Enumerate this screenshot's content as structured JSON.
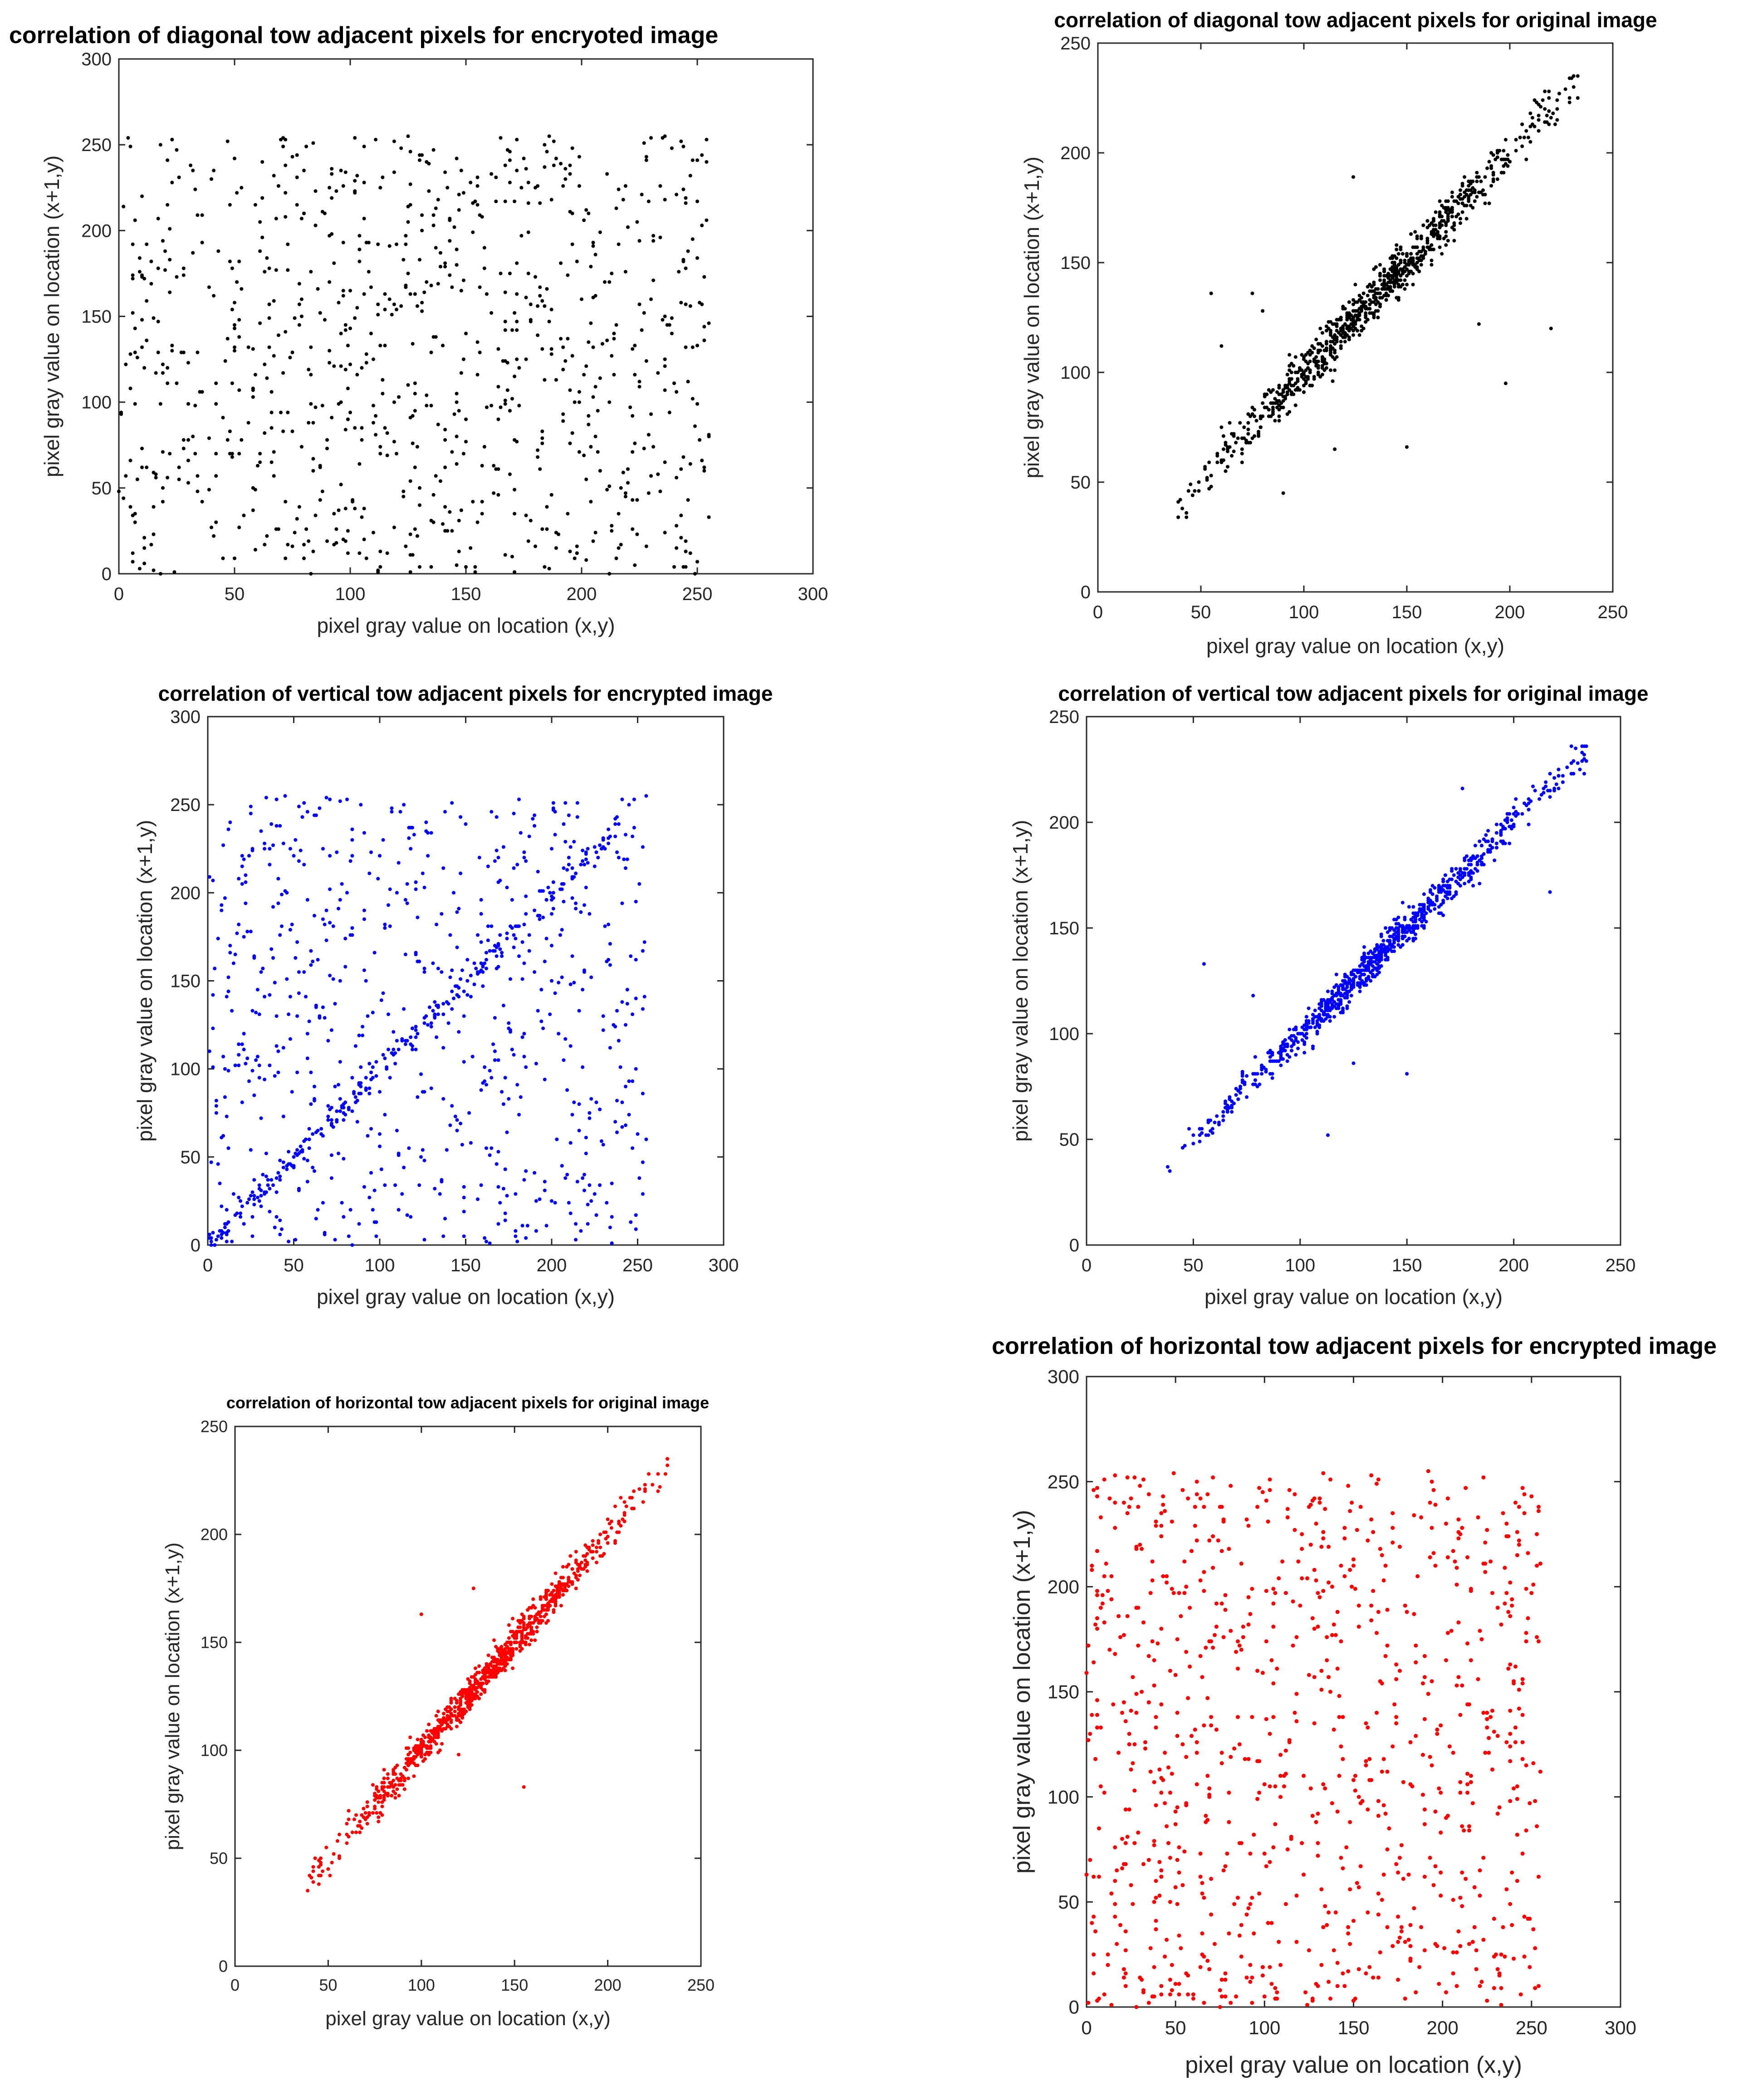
{
  "chart_data": [
    {
      "type": "scatter",
      "title": "correlation of diagonal tow adjacent pixels for encryoted image",
      "xlabel": "pixel gray value on location (x,y)",
      "ylabel": "pixel gray value on location (x+1,y)",
      "xlim": [
        0,
        300
      ],
      "ylim": [
        0,
        300
      ],
      "xticks": [
        0,
        50,
        100,
        150,
        200,
        250,
        300
      ],
      "yticks": [
        0,
        50,
        100,
        150,
        200,
        250,
        300
      ],
      "grid": false,
      "legend": "none",
      "color": "#000000",
      "pattern": "uniform",
      "n_points": 900,
      "x_range": [
        0,
        255
      ],
      "y_range": [
        0,
        255
      ],
      "seed": 11
    },
    {
      "type": "scatter",
      "title": "correlation of diagonal tow adjacent pixels for original image",
      "xlabel": "pixel gray value on location (x,y)",
      "ylabel": "pixel gray value on location (x+1,y)",
      "xlim": [
        0,
        250
      ],
      "ylim": [
        0,
        250
      ],
      "xticks": [
        0,
        50,
        100,
        150,
        200,
        250
      ],
      "yticks": [
        0,
        50,
        100,
        150,
        200,
        250
      ],
      "grid": false,
      "legend": "none",
      "color": "#000000",
      "pattern": "correlated",
      "n_points": 900,
      "x_range": [
        38,
        233
      ],
      "noise": 5,
      "outliers": [
        [
          55,
          136
        ],
        [
          75,
          136
        ],
        [
          60,
          112
        ],
        [
          90,
          45
        ],
        [
          80,
          128
        ],
        [
          124,
          189
        ],
        [
          150,
          66
        ],
        [
          115,
          65
        ],
        [
          220,
          120
        ],
        [
          198,
          95
        ],
        [
          185,
          122
        ]
      ],
      "seed": 23
    },
    {
      "type": "scatter",
      "title": "correlation of vertical tow adjacent pixels for encrypted image",
      "xlabel": "pixel gray value on location (x,y)",
      "ylabel": "pixel gray value on location (x+1,y)",
      "xlim": [
        0,
        300
      ],
      "ylim": [
        0,
        300
      ],
      "xticks": [
        0,
        50,
        100,
        150,
        200,
        250,
        300
      ],
      "yticks": [
        0,
        50,
        100,
        150,
        200,
        250,
        300
      ],
      "grid": false,
      "legend": "none",
      "color": "#0000ff",
      "pattern": "uniform_with_diagonal",
      "n_points": 700,
      "n_diagonal": 260,
      "x_range": [
        0,
        255
      ],
      "y_range": [
        0,
        255
      ],
      "noise": 4,
      "seed": 37
    },
    {
      "type": "scatter",
      "title": "correlation of vertical tow adjacent pixels for original image",
      "xlabel": "pixel gray value on location (x,y)",
      "ylabel": "pixel gray value on location (x+1,y)",
      "xlim": [
        0,
        250
      ],
      "ylim": [
        0,
        250
      ],
      "xticks": [
        0,
        50,
        100,
        150,
        200,
        250
      ],
      "yticks": [
        0,
        50,
        100,
        150,
        200,
        250
      ],
      "grid": false,
      "legend": "none",
      "color": "#0000ff",
      "pattern": "correlated",
      "n_points": 900,
      "x_range": [
        37,
        234
      ],
      "noise": 4,
      "outliers": [
        [
          55,
          133
        ],
        [
          78,
          118
        ],
        [
          150,
          81
        ],
        [
          125,
          86
        ],
        [
          217,
          167
        ],
        [
          176,
          216
        ],
        [
          113,
          52
        ]
      ],
      "seed": 41
    },
    {
      "type": "scatter",
      "title": "correlation of horizontal tow adjacent pixels for original image",
      "xlabel": "pixel gray value on location (x,y)",
      "ylabel": "pixel gray value on location (x+1,y)",
      "xlim": [
        0,
        250
      ],
      "ylim": [
        0,
        250
      ],
      "xticks": [
        0,
        50,
        100,
        150,
        200,
        250
      ],
      "yticks": [
        0,
        50,
        100,
        150,
        200,
        250
      ],
      "grid": false,
      "legend": "none",
      "color": "#ff0000",
      "pattern": "correlated",
      "n_points": 900,
      "x_range": [
        38,
        233
      ],
      "noise": 4,
      "outliers": [
        [
          100,
          163
        ],
        [
          128,
          175
        ],
        [
          155,
          83
        ],
        [
          120,
          98
        ],
        [
          180,
          190
        ]
      ],
      "seed": 53
    },
    {
      "type": "scatter",
      "title": "correlation of horizontal tow adjacent pixels for encrypted image",
      "xlabel": "pixel gray value on location (x,y)",
      "ylabel": "pixel gray value on location (x+1,y)",
      "xlim": [
        0,
        300
      ],
      "ylim": [
        0,
        300
      ],
      "xticks": [
        0,
        50,
        100,
        150,
        200,
        250,
        300
      ],
      "yticks": [
        0,
        50,
        100,
        150,
        200,
        250,
        300
      ],
      "grid": false,
      "legend": "none",
      "color": "#ff0000",
      "pattern": "uniform",
      "n_points": 900,
      "x_range": [
        0,
        255
      ],
      "y_range": [
        0,
        255
      ],
      "seed": 67
    }
  ]
}
